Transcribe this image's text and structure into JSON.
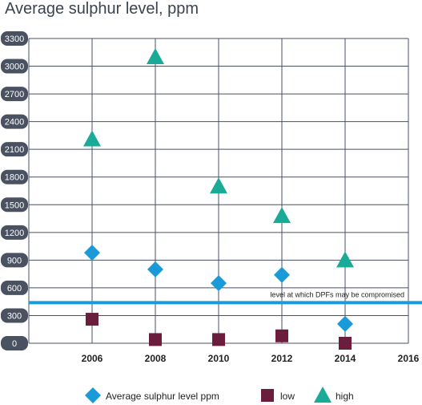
{
  "chart_data": {
    "type": "scatter",
    "title": "Average sulphur level, ppm",
    "xlabel": "",
    "ylabel": "",
    "xlim": [
      2004,
      2016
    ],
    "ylim": [
      0,
      3300
    ],
    "x_ticks": [
      "2006",
      "2008",
      "2010",
      "2012",
      "2014",
      "2016"
    ],
    "y_ticks": [
      "0",
      "300",
      "600",
      "900",
      "1200",
      "1500",
      "1800",
      "2100",
      "2400",
      "2700",
      "3000",
      "3300"
    ],
    "grid": true,
    "legend_position": "bottom",
    "series": [
      {
        "name": "Average sulphur level ppm",
        "marker": "diamond",
        "color": "#1a9ad9",
        "points": [
          {
            "x": 2006,
            "y": 980
          },
          {
            "x": 2008,
            "y": 800
          },
          {
            "x": 2010,
            "y": 650
          },
          {
            "x": 2012,
            "y": 740
          },
          {
            "x": 2014,
            "y": 210
          }
        ]
      },
      {
        "name": "low",
        "marker": "square",
        "color": "#6b1d3d",
        "points": [
          {
            "x": 2006,
            "y": 260
          },
          {
            "x": 2008,
            "y": 40
          },
          {
            "x": 2010,
            "y": 40
          },
          {
            "x": 2012,
            "y": 80
          },
          {
            "x": 2014,
            "y": 0
          }
        ]
      },
      {
        "name": "high",
        "marker": "triangle",
        "color": "#1aaa98",
        "points": [
          {
            "x": 2006,
            "y": 2210
          },
          {
            "x": 2008,
            "y": 3100
          },
          {
            "x": 2010,
            "y": 1700
          },
          {
            "x": 2012,
            "y": 1380
          },
          {
            "x": 2014,
            "y": 900
          }
        ]
      }
    ],
    "reference_line": {
      "y": 440,
      "label": "level at which DPFs may be compromised",
      "color": "#1a9ad9"
    }
  }
}
